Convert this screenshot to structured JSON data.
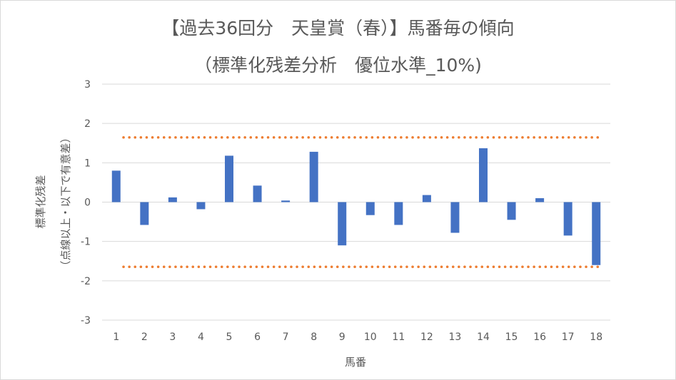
{
  "chart_data": {
    "type": "bar",
    "title_line1": "【過去36回分　天皇賞（春）】馬番毎の傾向",
    "title_line2": "（標準化残差分析　優位水準_10%)",
    "xlabel": "馬番",
    "ylabel_line1": "標準化残差",
    "ylabel_line2": "（点線以上・以下で有意差）",
    "categories": [
      "1",
      "2",
      "3",
      "4",
      "5",
      "6",
      "7",
      "8",
      "9",
      "10",
      "11",
      "12",
      "13",
      "14",
      "15",
      "16",
      "17",
      "18"
    ],
    "values": [
      0.8,
      -0.58,
      0.12,
      -0.18,
      1.18,
      0.42,
      0.04,
      1.28,
      -1.1,
      -0.33,
      -0.58,
      0.18,
      -0.78,
      1.37,
      -0.45,
      0.1,
      -0.85,
      -1.6
    ],
    "ylim": [
      -3,
      3
    ],
    "yticks": [
      -3,
      -2,
      -1,
      0,
      1,
      2,
      3
    ],
    "threshold_upper": 1.645,
    "threshold_lower": -1.645,
    "bar_color": "#4472c4",
    "threshold_color": "#ed7d31",
    "grid": true,
    "legend": "none"
  }
}
